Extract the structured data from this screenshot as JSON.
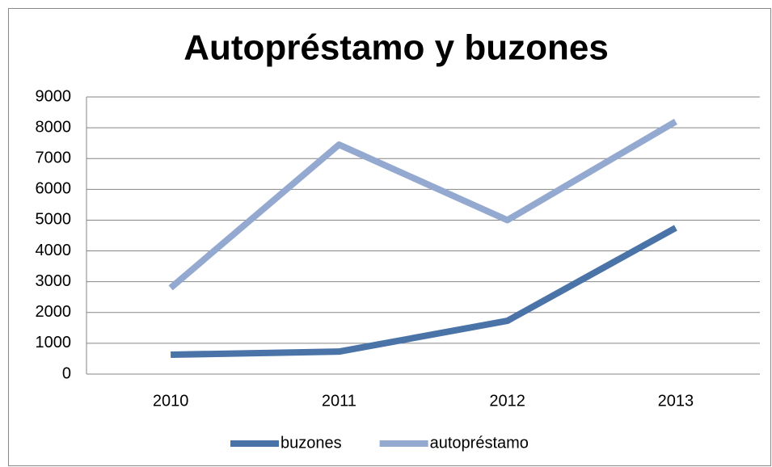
{
  "chart_data": {
    "type": "line",
    "title": "Autopréstamo y buzones",
    "categories": [
      "2010",
      "2011",
      "2012",
      "2013"
    ],
    "series": [
      {
        "name": "buzones",
        "color": "#4a73a8",
        "values": [
          630,
          730,
          1730,
          4750
        ]
      },
      {
        "name": "autopréstamo",
        "color": "#94a9d0",
        "values": [
          2800,
          7450,
          5000,
          8200
        ]
      }
    ],
    "ylim": [
      0,
      9000
    ],
    "yticks": [
      0,
      1000,
      2000,
      3000,
      4000,
      5000,
      6000,
      7000,
      8000,
      9000
    ],
    "grid": true,
    "legend": "bottom"
  }
}
